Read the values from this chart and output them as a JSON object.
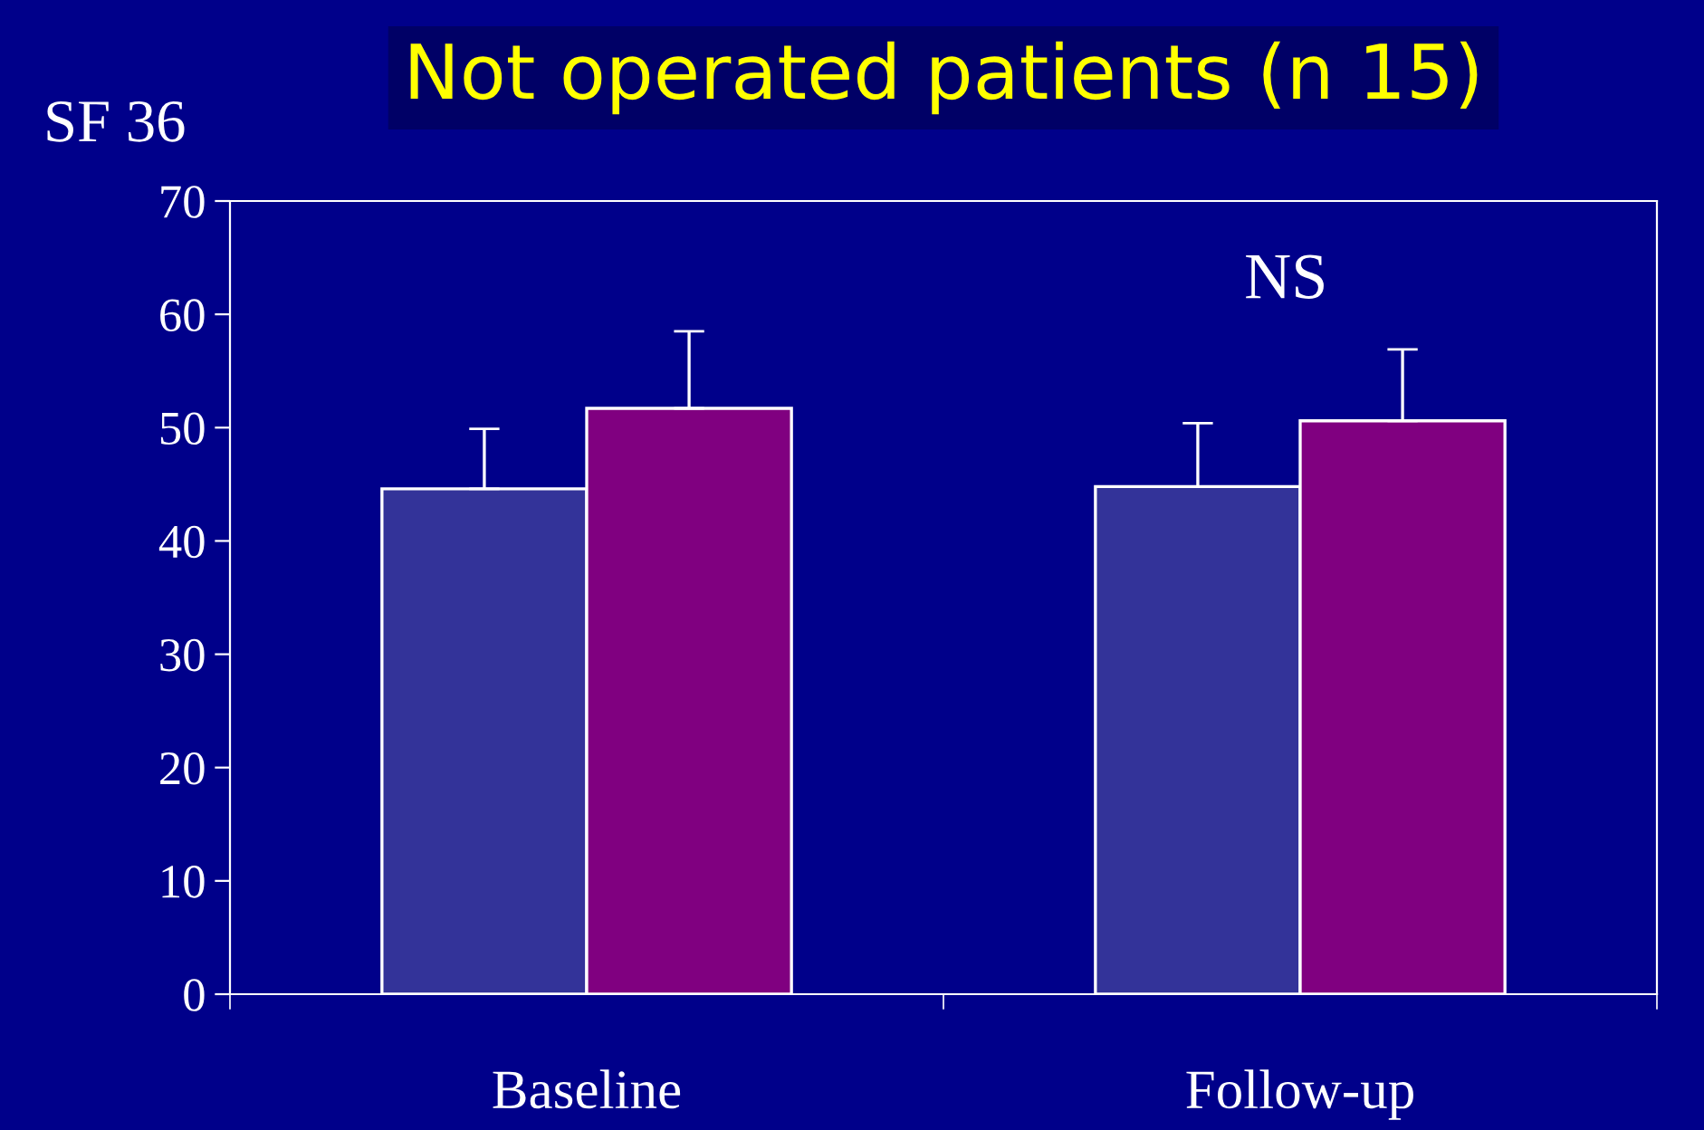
{
  "chart_data": {
    "type": "bar",
    "title": "Not operated patients (n 15)",
    "ylabel": "SF 36",
    "categories": [
      "Baseline",
      "Follow-up"
    ],
    "series": [
      {
        "color": "#333399",
        "values": [
          44.6,
          44.8
        ],
        "errors": [
          5.3,
          5.6
        ]
      },
      {
        "color": "#800080",
        "values": [
          51.7,
          50.6
        ],
        "errors": [
          6.8,
          6.3
        ]
      }
    ],
    "ylim": [
      0,
      70
    ],
    "yticks": [
      0,
      10,
      20,
      30,
      40,
      50,
      60,
      70
    ],
    "grid": false,
    "legend": false,
    "annotations": [
      "NS"
    ]
  }
}
